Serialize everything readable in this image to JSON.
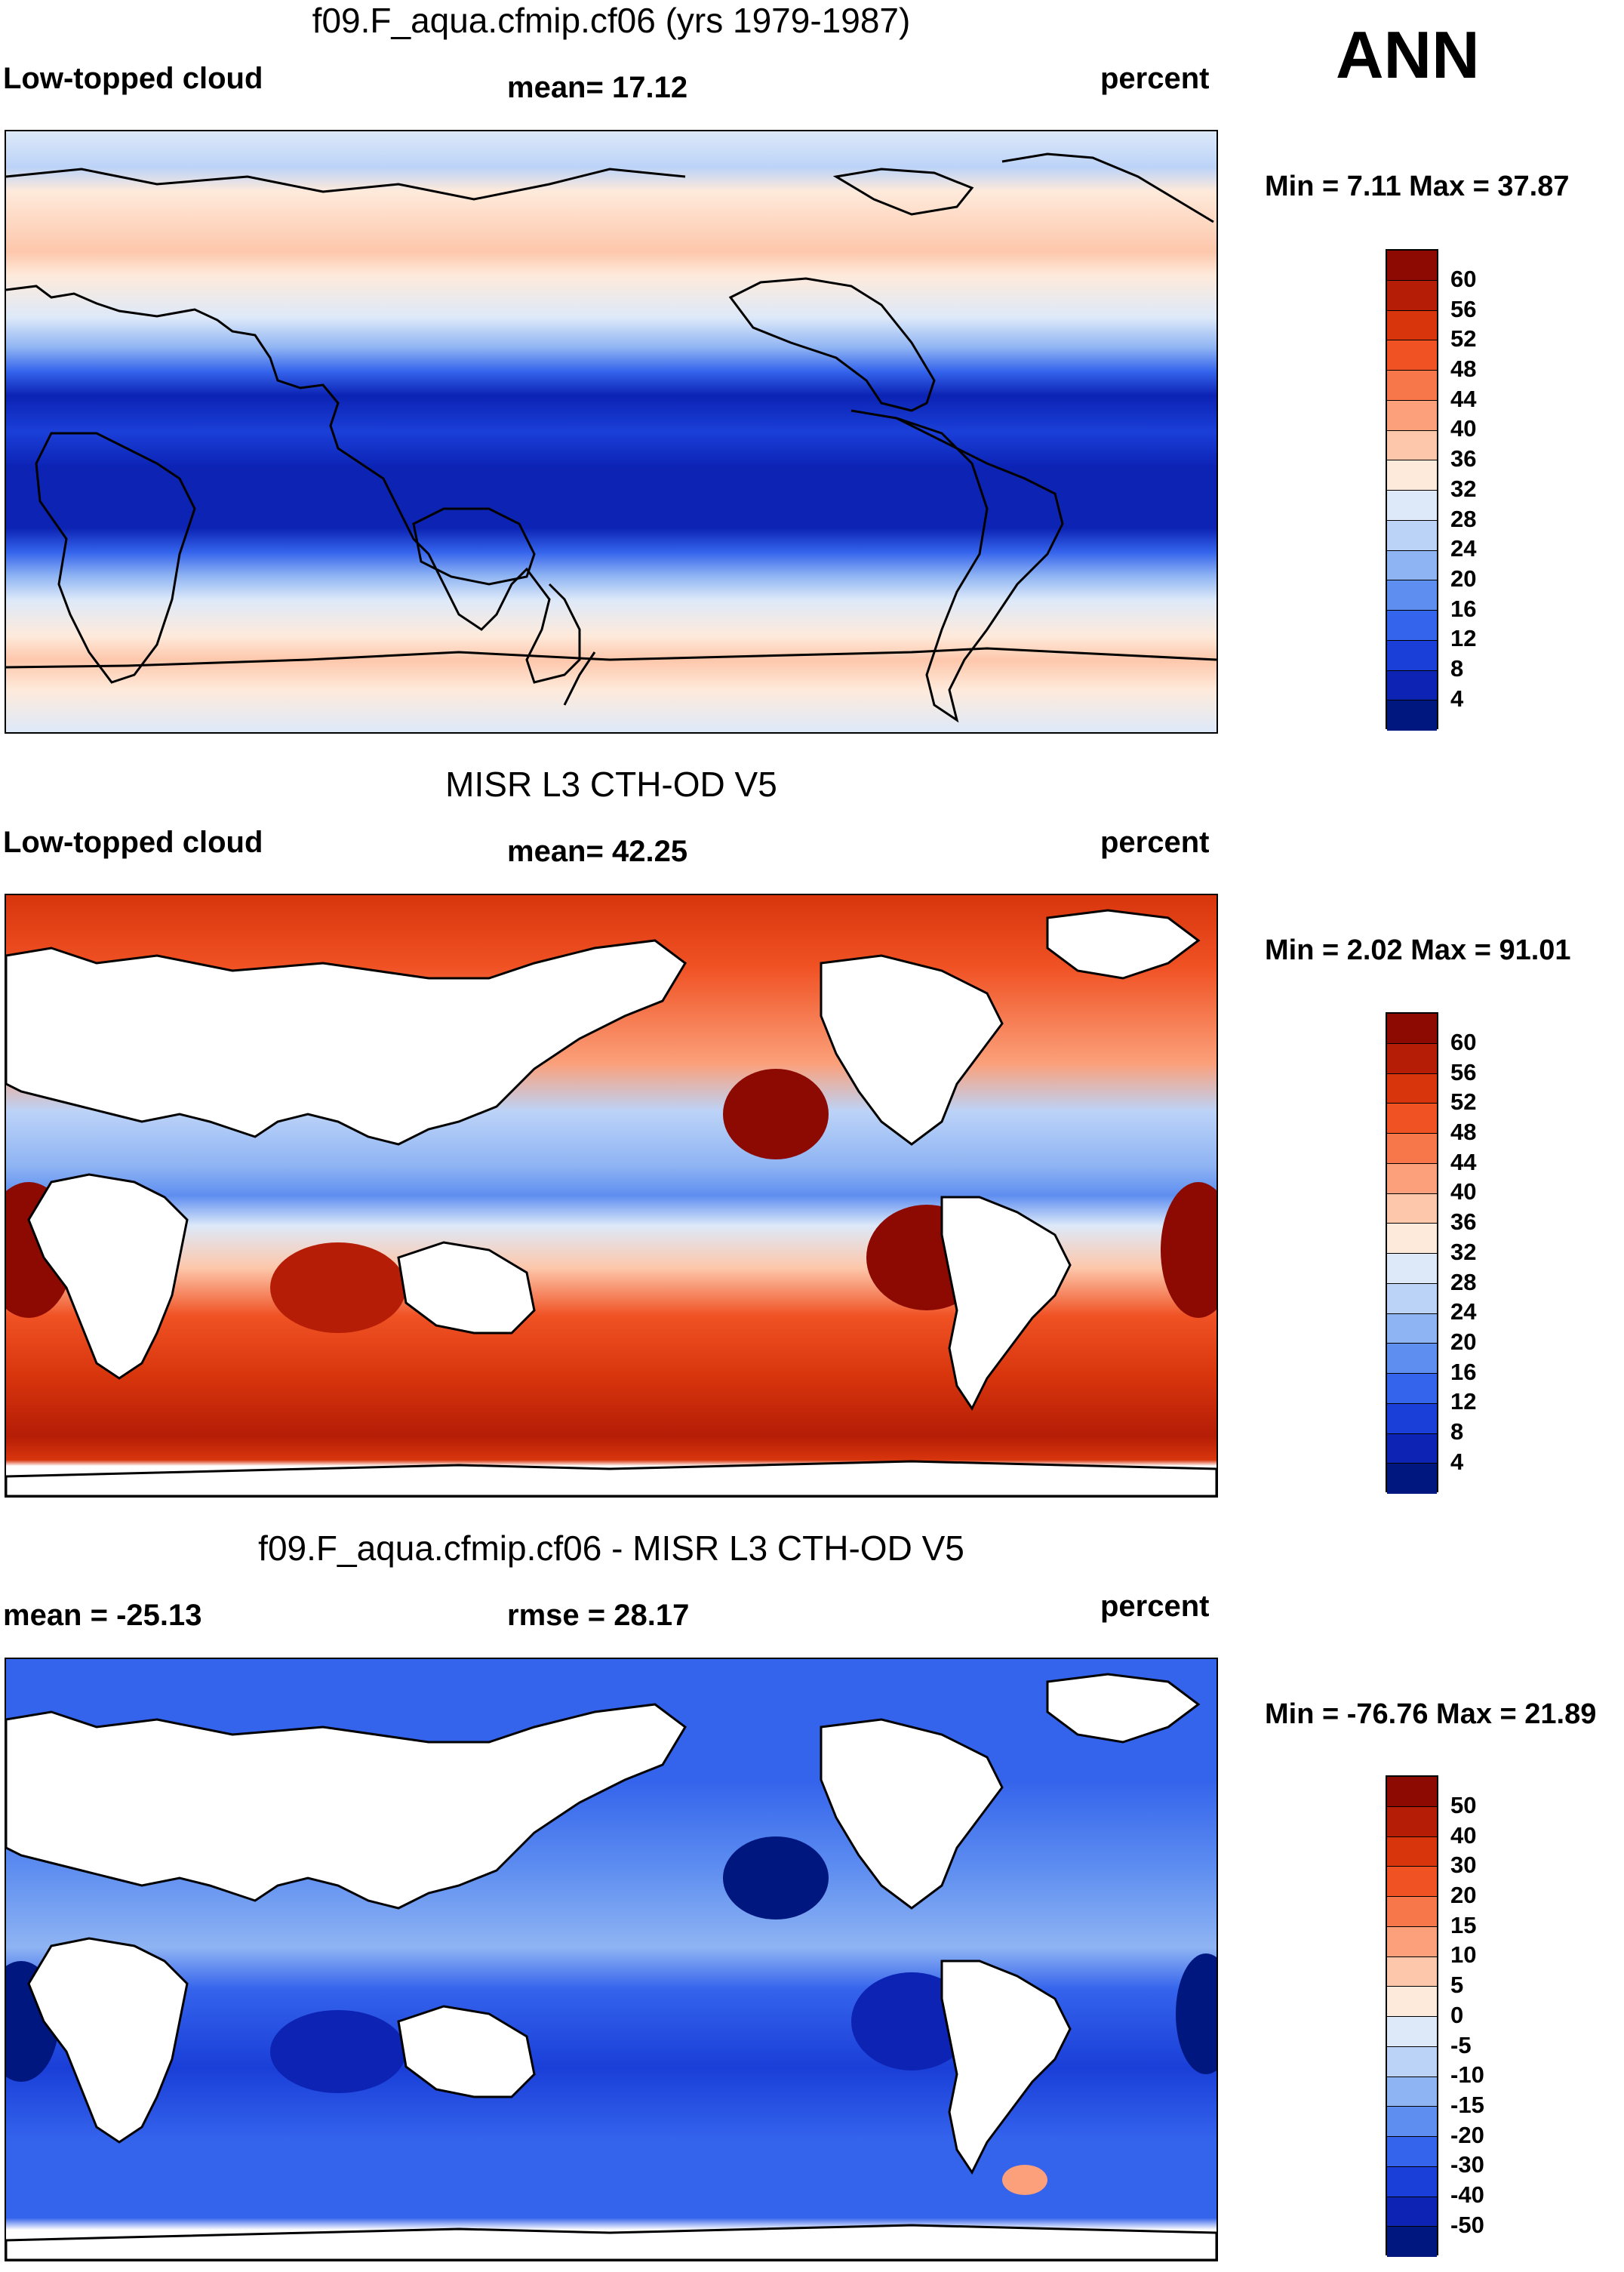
{
  "season": "ANN",
  "panels": [
    {
      "title": "f09.F_aqua.cfmip.cf06 (yrs 1979-1987)",
      "left_label": "Low-topped cloud",
      "center_label": "mean=  17.12",
      "right_label": "percent",
      "minmax": "Min =   7.11 Max =  37.87",
      "colorbar": {
        "ticks": [
          "60",
          "56",
          "52",
          "48",
          "44",
          "40",
          "36",
          "32",
          "28",
          "24",
          "20",
          "16",
          "12",
          "8",
          "4"
        ],
        "colors": [
          "#8c0a02",
          "#b51d06",
          "#d8350d",
          "#f05224",
          "#f7764a",
          "#fba07a",
          "#fdc7ab",
          "#feeadb",
          "#dde9f9",
          "#bcd3f8",
          "#8fb4f3",
          "#5e8ef0",
          "#3463ec",
          "#1a3fd8",
          "#0c23b4",
          "#00177f"
        ]
      }
    },
    {
      "title": "MISR L3 CTH-OD V5",
      "left_label": "Low-topped cloud",
      "center_label": "mean=  42.25",
      "right_label": "percent",
      "minmax": "Min =   2.02 Max =  91.01",
      "colorbar": {
        "ticks": [
          "60",
          "56",
          "52",
          "48",
          "44",
          "40",
          "36",
          "32",
          "28",
          "24",
          "20",
          "16",
          "12",
          "8",
          "4"
        ],
        "colors": [
          "#8c0a02",
          "#b51d06",
          "#d8350d",
          "#f05224",
          "#f7764a",
          "#fba07a",
          "#fdc7ab",
          "#feeadb",
          "#dde9f9",
          "#bcd3f8",
          "#8fb4f3",
          "#5e8ef0",
          "#3463ec",
          "#1a3fd8",
          "#0c23b4",
          "#00177f"
        ]
      }
    },
    {
      "title": "f09.F_aqua.cfmip.cf06 - MISR L3 CTH-OD V5",
      "left_label": "mean = -25.13",
      "center_label": "rmse =  28.17",
      "right_label": "percent",
      "minmax": "Min = -76.76 Max =  21.89",
      "colorbar": {
        "ticks": [
          "50",
          "40",
          "30",
          "20",
          "15",
          "10",
          "5",
          "0",
          "-5",
          "-10",
          "-15",
          "-20",
          "-30",
          "-40",
          "-50"
        ],
        "colors": [
          "#8c0a02",
          "#b51d06",
          "#d8350d",
          "#f05224",
          "#f7764a",
          "#fba07a",
          "#fdc7ab",
          "#feeadb",
          "#dde9f9",
          "#bcd3f8",
          "#8fb4f3",
          "#5e8ef0",
          "#3463ec",
          "#1a3fd8",
          "#0c23b4",
          "#00177f"
        ]
      }
    }
  ],
  "colors": {
    "land": "#ffffff",
    "coastline": "#000000"
  }
}
